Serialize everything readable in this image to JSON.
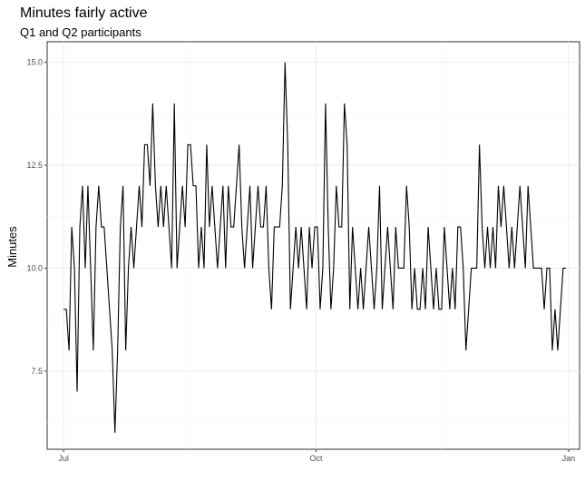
{
  "chart_data": {
    "type": "line",
    "title": "Minutes fairly active",
    "subtitle": "Q1 and Q2 participants",
    "xlabel": "",
    "ylabel": "Minutes",
    "x_ticks": [
      "Jul",
      "Oct",
      "Jan"
    ],
    "y_ticks": [
      "7.5",
      "10.0",
      "12.5",
      "15.0"
    ],
    "xlim": [
      "2022-06-25",
      "2023-01-05"
    ],
    "ylim": [
      5.6,
      15.5
    ],
    "grid": true,
    "line_color": "#000000",
    "series": [
      {
        "x_start": "2022-07-01",
        "x_end": "2022-12-31",
        "values": [
          9,
          9,
          8,
          11,
          10,
          7,
          11,
          12,
          10,
          12,
          10,
          8,
          11,
          12,
          11,
          11,
          10,
          9,
          8,
          6,
          8,
          11,
          12,
          8,
          10,
          11,
          10,
          11,
          12,
          11,
          13,
          13,
          12,
          14,
          12,
          11,
          12,
          11,
          12,
          11,
          10,
          14,
          10,
          11,
          12,
          11,
          13,
          13,
          12,
          12,
          10,
          11,
          10,
          13,
          11,
          12,
          11,
          10,
          11,
          12,
          10,
          12,
          11,
          11,
          12,
          13,
          11,
          10,
          11,
          12,
          10,
          11,
          12,
          11,
          11,
          12,
          10,
          9,
          11,
          11,
          11,
          12,
          15,
          13,
          9,
          10,
          11,
          10,
          11,
          10,
          9,
          11,
          10,
          11,
          11,
          9,
          10,
          14,
          11,
          9,
          10,
          12,
          11,
          11,
          14,
          13,
          9,
          11,
          10,
          9,
          10,
          9,
          10,
          11,
          10,
          9,
          10,
          12,
          9,
          10,
          11,
          10,
          9,
          11,
          10,
          10,
          10,
          12,
          11,
          9,
          10,
          9,
          9,
          10,
          9,
          11,
          10,
          9,
          10,
          9,
          9,
          11,
          10,
          9,
          10,
          9,
          11,
          11,
          10,
          8,
          9,
          10,
          10,
          10,
          13,
          11,
          10,
          11,
          10,
          11,
          10,
          12,
          11,
          12,
          11,
          10,
          11,
          10,
          11,
          12,
          11,
          10,
          12,
          11,
          10,
          10,
          10,
          10,
          9,
          10,
          10,
          8,
          9,
          8,
          9,
          10,
          10
        ]
      }
    ]
  }
}
